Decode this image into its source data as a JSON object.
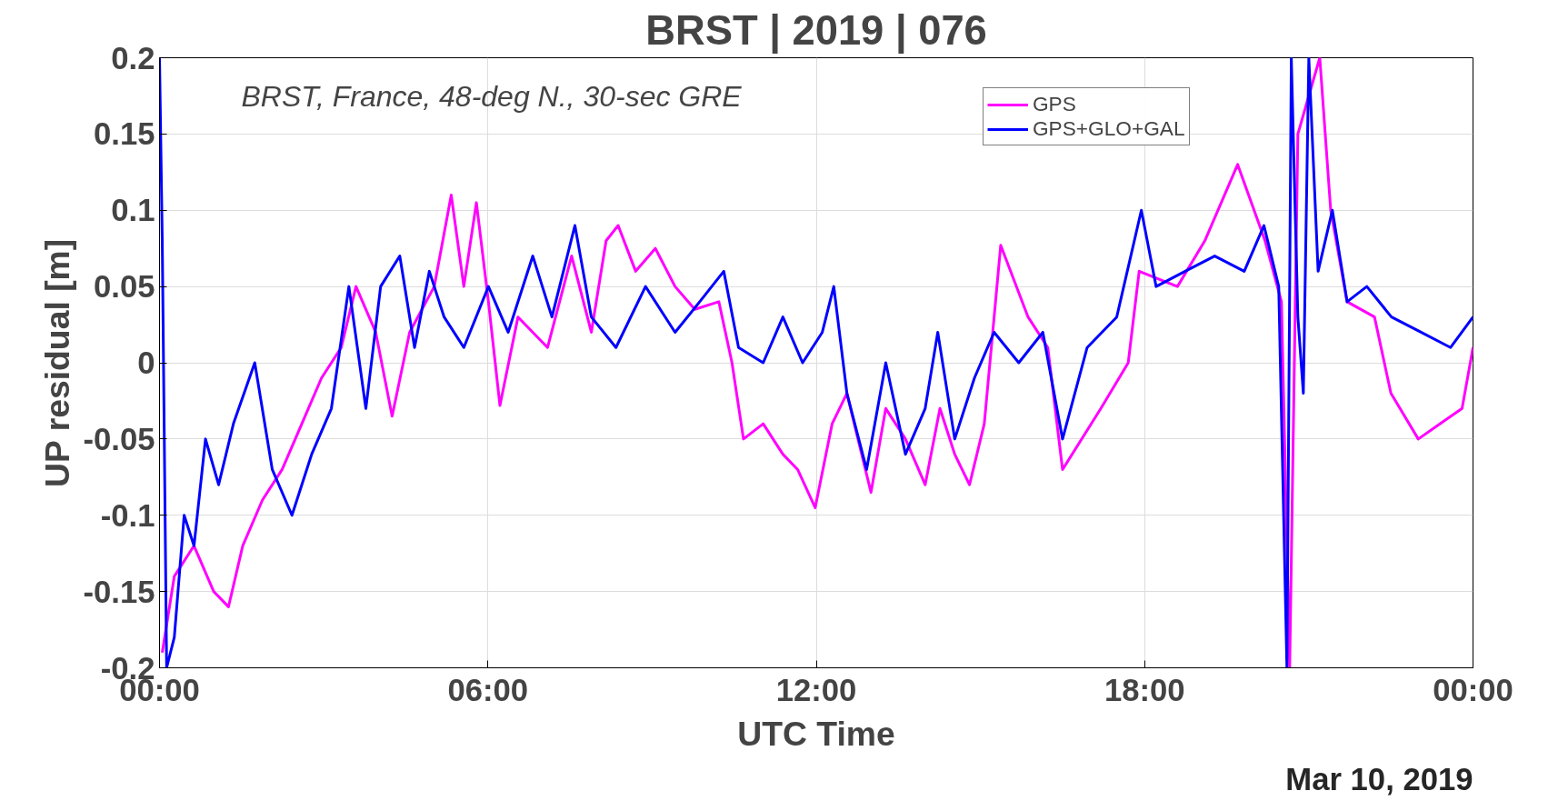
{
  "chart_data": {
    "type": "line",
    "title": "BRST | 2019 | 076",
    "xlabel": "UTC Time",
    "ylabel": "UP residual [m]",
    "annotations": [
      "BRST, France, 48-deg N., 30-sec GRE",
      "Mar 10, 2019"
    ],
    "xlim": [
      0,
      24
    ],
    "ylim": [
      -0.2,
      0.2
    ],
    "xticks": [
      {
        "value": 0,
        "label": "00:00"
      },
      {
        "value": 6,
        "label": "06:00"
      },
      {
        "value": 12,
        "label": "12:00"
      },
      {
        "value": 18,
        "label": "18:00"
      },
      {
        "value": 24,
        "label": "00:00"
      }
    ],
    "yticks": [
      {
        "value": -0.2,
        "label": "-0.2"
      },
      {
        "value": -0.15,
        "label": "-0.15"
      },
      {
        "value": -0.1,
        "label": "-0.1"
      },
      {
        "value": -0.05,
        "label": "-0.05"
      },
      {
        "value": 0,
        "label": "0"
      },
      {
        "value": 0.05,
        "label": "0.05"
      },
      {
        "value": 0.1,
        "label": "0.1"
      },
      {
        "value": 0.15,
        "label": "0.15"
      },
      {
        "value": 0.2,
        "label": "0.2"
      }
    ],
    "grid": true,
    "legend": "top right",
    "line_style": "solid",
    "marker": "none",
    "series": [
      {
        "name": "GPS",
        "color": "#ff00ff",
        "x": [
          0.05,
          0.27,
          0.63,
          0.99,
          1.26,
          1.52,
          1.88,
          2.24,
          2.6,
          2.96,
          3.32,
          3.59,
          3.95,
          4.25,
          4.57,
          5.02,
          5.33,
          5.56,
          5.79,
          6.01,
          6.22,
          6.55,
          7.09,
          7.53,
          7.89,
          8.16,
          8.38,
          8.7,
          9.06,
          9.42,
          9.78,
          10.22,
          10.46,
          10.67,
          11.03,
          11.39,
          11.66,
          11.98,
          12.29,
          12.56,
          12.83,
          13.0,
          13.27,
          13.63,
          13.99,
          14.26,
          14.53,
          14.8,
          15.07,
          15.25,
          15.37,
          15.87,
          16.23,
          16.5,
          17.2,
          17.7,
          17.9,
          18.6,
          19.1,
          19.7,
          20.2,
          20.5,
          20.65,
          20.8,
          21.2,
          21.4,
          21.7,
          22.2,
          22.5,
          23.0,
          23.4,
          23.8,
          24.0
        ],
        "values": [
          -0.19,
          -0.14,
          -0.12,
          -0.15,
          -0.16,
          -0.12,
          -0.09,
          -0.07,
          -0.04,
          -0.01,
          0.01,
          0.05,
          0.02,
          -0.035,
          0.02,
          0.05,
          0.11,
          0.05,
          0.105,
          0.04,
          -0.028,
          0.03,
          0.01,
          0.07,
          0.02,
          0.08,
          0.09,
          0.06,
          0.075,
          0.05,
          0.035,
          0.04,
          0.0,
          -0.05,
          -0.04,
          -0.06,
          -0.07,
          -0.095,
          -0.04,
          -0.02,
          -0.06,
          -0.085,
          -0.03,
          -0.05,
          -0.08,
          -0.03,
          -0.06,
          -0.08,
          -0.04,
          0.03,
          0.077,
          0.03,
          0.01,
          -0.07,
          -0.03,
          0.0,
          0.06,
          0.05,
          0.08,
          0.13,
          0.08,
          0.04,
          -0.2,
          0.15,
          0.2,
          0.1,
          0.04,
          0.03,
          -0.02,
          -0.05,
          -0.04,
          -0.03,
          0.01
        ]
      },
      {
        "name": "GPS+GLO+GAL",
        "color": "#0000ff",
        "x": [
          0.0,
          0.05,
          0.13,
          0.27,
          0.45,
          0.63,
          0.84,
          1.08,
          1.35,
          1.74,
          2.06,
          2.42,
          2.78,
          3.14,
          3.46,
          3.77,
          4.04,
          4.39,
          4.66,
          4.93,
          5.2,
          5.56,
          6.01,
          6.37,
          6.82,
          7.17,
          7.59,
          7.89,
          8.34,
          8.88,
          9.42,
          9.87,
          10.31,
          10.58,
          11.03,
          11.39,
          11.75,
          12.11,
          12.32,
          12.56,
          12.92,
          13.27,
          13.63,
          13.99,
          14.22,
          14.53,
          14.89,
          15.25,
          15.7,
          16.14,
          16.5,
          16.95,
          17.49,
          17.94,
          18.21,
          18.74,
          19.28,
          19.82,
          20.18,
          20.45,
          20.6,
          20.68,
          20.8,
          20.9,
          21.0,
          21.17,
          21.43,
          21.7,
          22.06,
          22.51,
          23.05,
          23.59,
          24.0
        ],
        "values": [
          0.2,
          0.08,
          -0.2,
          -0.18,
          -0.1,
          -0.12,
          -0.05,
          -0.08,
          -0.04,
          0.0,
          -0.07,
          -0.1,
          -0.06,
          -0.03,
          0.05,
          -0.03,
          0.05,
          0.07,
          0.01,
          0.06,
          0.03,
          0.01,
          0.05,
          0.02,
          0.07,
          0.03,
          0.09,
          0.03,
          0.01,
          0.05,
          0.02,
          0.04,
          0.06,
          0.01,
          0.0,
          0.03,
          0.0,
          0.02,
          0.05,
          -0.02,
          -0.07,
          0.0,
          -0.06,
          -0.03,
          0.02,
          -0.05,
          -0.01,
          0.02,
          0.0,
          0.02,
          -0.05,
          0.01,
          0.03,
          0.1,
          0.05,
          0.06,
          0.07,
          0.06,
          0.09,
          0.05,
          -0.2,
          0.2,
          0.03,
          -0.02,
          0.2,
          0.06,
          0.1,
          0.04,
          0.05,
          0.03,
          0.02,
          0.01,
          0.03
        ]
      }
    ]
  }
}
